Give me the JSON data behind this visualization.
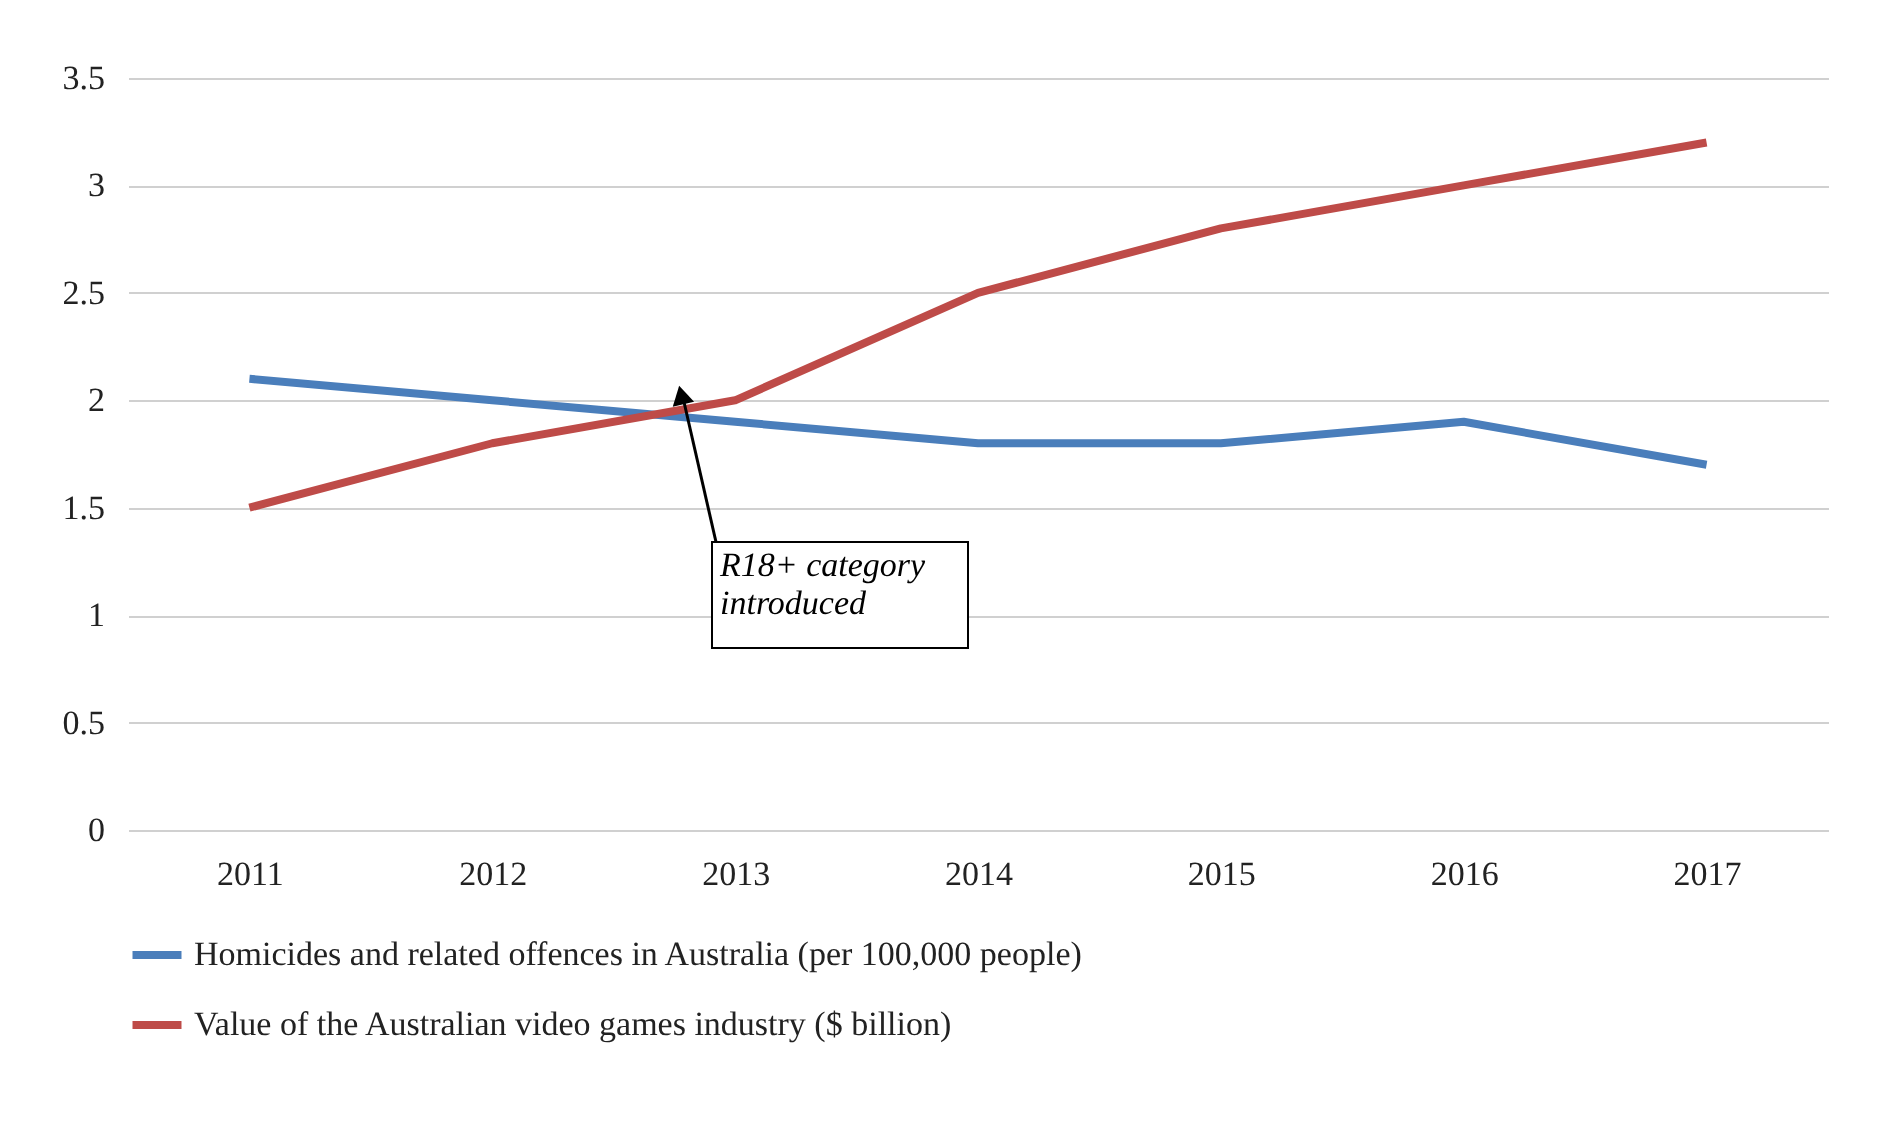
{
  "chart_data": {
    "type": "line",
    "categories": [
      "2011",
      "2012",
      "2013",
      "2014",
      "2015",
      "2016",
      "2017"
    ],
    "series": [
      {
        "name": "Homicides and related offences in Australia (per 100,000 people)",
        "color": "#4a7ebb",
        "values": [
          2.1,
          2.0,
          1.9,
          1.8,
          1.8,
          1.9,
          1.7
        ]
      },
      {
        "name": "Value of the Australian video games industry ($ billion)",
        "color": "#be4b48",
        "values": [
          1.5,
          1.8,
          2.0,
          2.5,
          2.8,
          3.0,
          3.2
        ]
      }
    ],
    "ylim": [
      0,
      3.5
    ],
    "yticks": [
      0,
      0.5,
      1,
      1.5,
      2,
      2.5,
      3,
      3.5
    ],
    "grid": "y",
    "legend": "bottom",
    "marker": "none",
    "line_style": "solid",
    "annotations": [
      "R18+ category\nintroduced"
    ]
  }
}
